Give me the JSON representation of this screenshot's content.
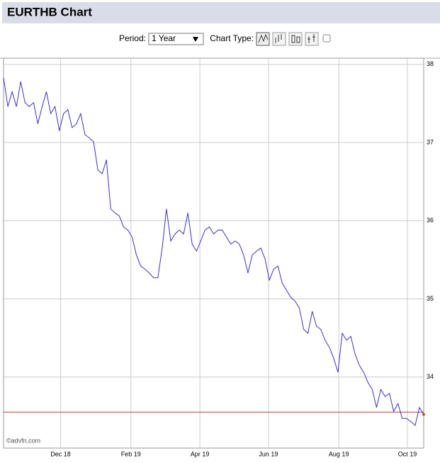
{
  "chart_data": {
    "type": "line",
    "title": "EURTHB Chart",
    "period_label": "Period:",
    "period": "1 Year",
    "chart_type_label": "Chart Type:",
    "source": "©advfn.com",
    "values": [
      37.83,
      37.46,
      37.65,
      37.46,
      37.78,
      37.51,
      37.46,
      37.51,
      37.24,
      37.46,
      37.65,
      37.37,
      37.46,
      37.15,
      37.37,
      37.42,
      37.19,
      37.24,
      37.37,
      37.1,
      37.06,
      37.01,
      36.65,
      36.6,
      36.78,
      36.15,
      36.1,
      36.06,
      35.92,
      35.88,
      35.79,
      35.56,
      35.42,
      35.38,
      35.33,
      35.27,
      35.27,
      35.65,
      36.15,
      35.74,
      35.83,
      35.88,
      35.83,
      36.1,
      35.7,
      35.61,
      35.74,
      35.88,
      35.92,
      35.83,
      35.88,
      35.88,
      35.79,
      35.7,
      35.74,
      35.7,
      35.56,
      35.33,
      35.56,
      35.61,
      35.65,
      35.51,
      35.24,
      35.38,
      35.42,
      35.2,
      35.11,
      35.02,
      34.97,
      34.88,
      34.61,
      34.56,
      34.84,
      34.65,
      34.61,
      34.47,
      34.38,
      34.24,
      34.06,
      34.56,
      34.47,
      34.52,
      34.29,
      34.15,
      34.06,
      33.93,
      33.84,
      33.61,
      33.84,
      33.75,
      33.79,
      33.56,
      33.66,
      33.47,
      33.47,
      33.43,
      33.38,
      33.61,
      33.52
    ],
    "color": "#3b2fd1",
    "reference_line": 33.55,
    "reference_color": "#c0392b",
    "xlim": [
      0,
      98
    ],
    "xticks": [
      {
        "value": 13.3,
        "label": "Dec 18"
      },
      {
        "value": 29.7,
        "label": "Feb 19"
      },
      {
        "value": 45.8,
        "label": "Apr 19"
      },
      {
        "value": 61.8,
        "label": "Jun 19"
      },
      {
        "value": 78.2,
        "label": "Aug 19"
      },
      {
        "value": 94.2,
        "label": "Oct 19"
      }
    ],
    "ylim": [
      33.09,
      38.08
    ],
    "yticks": [
      34,
      35,
      36,
      37,
      38
    ],
    "grid": true
  }
}
